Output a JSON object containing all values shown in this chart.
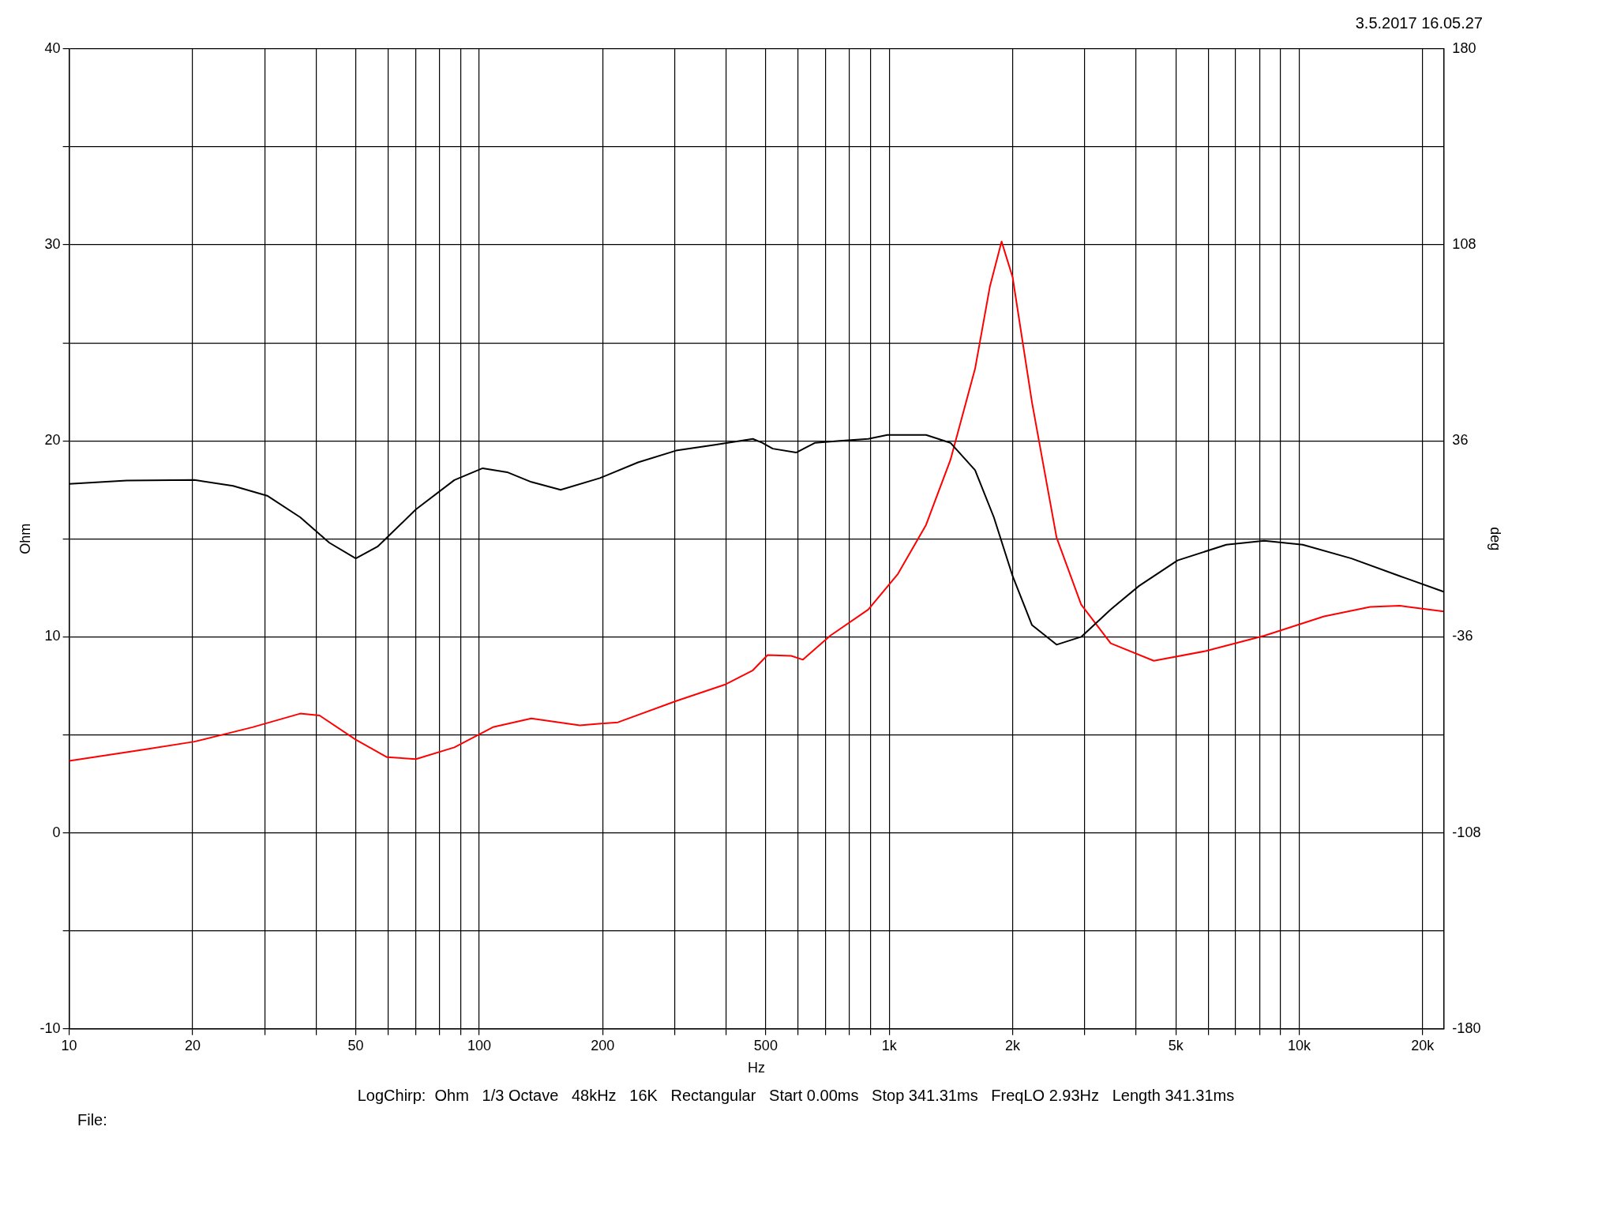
{
  "chart_data": {
    "type": "line",
    "xlabel": "Hz",
    "ylabel": "Ohm",
    "y2label": "deg",
    "annotations": [
      "3.5.2017 16.05.27",
      "LogChirp:  Ohm   1/3 Octave   48kHz   16K   Rectangular   Start 0.00ms   Stop 341.31ms   FreqLO 2.93Hz   Length 341.31ms",
      "File:"
    ],
    "log": "x",
    "grid": true,
    "legend": false,
    "marker": "none",
    "line_style": "solid",
    "xlim": [
      10,
      22500
    ],
    "xticks": [
      10,
      20,
      {
        "value": 30,
        "label": null
      },
      {
        "value": 40,
        "label": null
      },
      50,
      {
        "value": 60,
        "label": null
      },
      {
        "value": 70,
        "label": null
      },
      {
        "value": 80,
        "label": null
      },
      {
        "value": 90,
        "label": null
      },
      100,
      200,
      {
        "value": 300,
        "label": null
      },
      {
        "value": 400,
        "label": null
      },
      500,
      {
        "value": 600,
        "label": null
      },
      {
        "value": 700,
        "label": null
      },
      {
        "value": 800,
        "label": null
      },
      {
        "value": 900,
        "label": null
      },
      {
        "value": 1000,
        "label": "1k"
      },
      {
        "value": 2000,
        "label": "2k"
      },
      {
        "value": 3000,
        "label": null
      },
      {
        "value": 4000,
        "label": null
      },
      {
        "value": 5000,
        "label": "5k"
      },
      {
        "value": 6000,
        "label": null
      },
      {
        "value": 7000,
        "label": null
      },
      {
        "value": 8000,
        "label": null
      },
      {
        "value": 9000,
        "label": null
      },
      {
        "value": 10000,
        "label": "10k"
      },
      {
        "value": 20000,
        "label": "20k"
      }
    ],
    "ylim": [
      -10,
      40
    ],
    "yticks": [
      -10,
      {
        "value": -5,
        "label": null
      },
      0,
      {
        "value": 5,
        "label": null
      },
      10,
      {
        "value": 15,
        "label": null
      },
      20,
      {
        "value": 25,
        "label": null
      },
      30,
      {
        "value": 35,
        "label": null
      },
      40
    ],
    "y2lim": [
      -180,
      180
    ],
    "y2ticks": [
      -180,
      -108,
      -36,
      36,
      108,
      180
    ],
    "series": [
      {
        "color": "#000000",
        "x": [
          10,
          13.8,
          20.2,
          25.1,
          30.4,
          36.6,
          43.1,
          50,
          56.5,
          70.1,
          87,
          102,
          117,
          134,
          158,
          197,
          244,
          302,
          376,
          465,
          490,
          520,
          593,
          660,
          757,
          889,
          990,
          1230,
          1410,
          1620,
          1800,
          2000,
          2230,
          2560,
          2940,
          3470,
          4070,
          5050,
          6640,
          8220,
          10200,
          13400,
          17600,
          22500
        ],
        "values": [
          17.8,
          17.97,
          18.0,
          17.7,
          17.2,
          16.1,
          14.8,
          14.0,
          14.6,
          16.5,
          18.0,
          18.6,
          18.4,
          17.9,
          17.5,
          18.1,
          18.9,
          19.5,
          19.8,
          20.1,
          19.9,
          19.6,
          19.4,
          19.9,
          20.0,
          20.1,
          20.3,
          20.3,
          19.9,
          18.5,
          16.1,
          13.1,
          10.6,
          9.6,
          10.0,
          11.4,
          12.6,
          13.9,
          14.7,
          14.9,
          14.7,
          14.0,
          13.1,
          12.3
        ]
      },
      {
        "color": "#ff0000",
        "axis": "y2",
        "x": [
          10,
          15.4,
          20.2,
          28,
          36.6,
          40.8,
          50,
          59.6,
          70.1,
          87,
          108,
          134,
          176,
          218,
          302,
          397,
          465,
          505,
          577,
          616,
          718,
          889,
          1050,
          1230,
          1410,
          1620,
          1760,
          1880,
          2000,
          2230,
          2560,
          2940,
          3470,
          4420,
          5930,
          8220,
          11500,
          14900,
          17600,
          22500
        ],
        "values": [
          -81.6,
          -77.3,
          -74.5,
          -69.2,
          -64.2,
          -64.9,
          -73.8,
          -80.2,
          -80.9,
          -76.6,
          -69.2,
          -66.0,
          -68.5,
          -67.4,
          -59.6,
          -53.6,
          -48.3,
          -42.7,
          -43.0,
          -44.4,
          -35.6,
          -26.0,
          -12.9,
          5.1,
          28.9,
          62.5,
          92.6,
          109.2,
          96.1,
          50.1,
          0.5,
          -24.2,
          -38.4,
          -44.8,
          -41.2,
          -35.6,
          -28.5,
          -25.0,
          -24.6,
          -26.7
        ]
      }
    ]
  }
}
